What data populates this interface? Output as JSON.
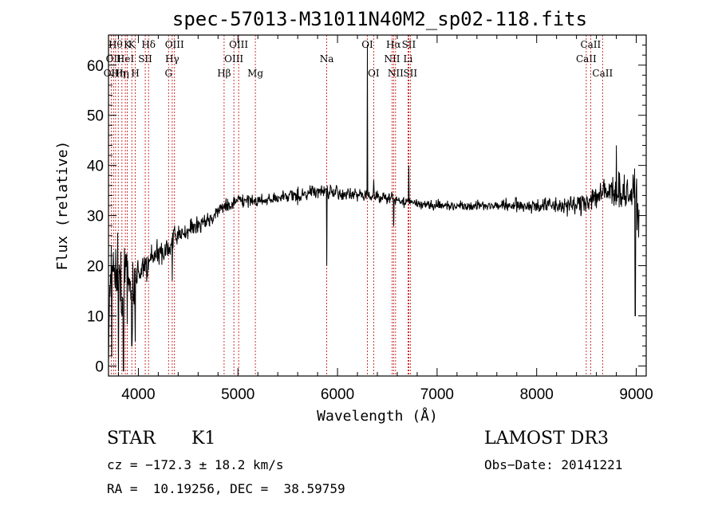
{
  "chart_data": {
    "type": "line",
    "title": "spec-57013-M31011N40M2_sp02-118.fits",
    "xlabel": "Wavelength (Å)",
    "ylabel": "Flux (relative)",
    "xlim": [
      3700,
      9100
    ],
    "ylim": [
      -2,
      66
    ],
    "xticks": [
      4000,
      5000,
      6000,
      7000,
      8000,
      9000
    ],
    "yticks": [
      0,
      10,
      20,
      30,
      40,
      50,
      60
    ],
    "grid": false,
    "spectrum_anchors": {
      "wavelength": [
        3700,
        3720,
        3760,
        3800,
        3850,
        3900,
        3950,
        4000,
        4100,
        4200,
        4300,
        4350,
        4400,
        4500,
        4600,
        4700,
        4800,
        4900,
        5000,
        5200,
        5400,
        5600,
        5800,
        6000,
        6200,
        6400,
        6600,
        6800,
        7000,
        7500,
        8000,
        8400,
        8600,
        8800,
        9000,
        9030
      ],
      "flux": [
        2,
        18,
        18,
        19,
        17,
        15,
        16,
        19,
        21,
        22,
        23,
        25,
        26,
        27,
        28,
        29,
        31,
        32,
        33,
        33,
        33.5,
        34,
        35,
        34.5,
        34,
        34,
        33,
        32.5,
        32,
        32,
        32,
        32,
        34,
        35,
        34,
        29
      ],
      "noise": [
        4,
        7,
        9,
        9,
        9,
        8,
        7,
        4,
        3,
        3,
        2.5,
        2.5,
        2,
        2,
        1.5,
        1.5,
        1.5,
        1.5,
        1.2,
        1.2,
        1.2,
        1.5,
        1.5,
        1.5,
        1.2,
        1.2,
        1.2,
        1,
        1,
        1,
        1.5,
        2,
        3,
        3.5,
        4,
        5
      ]
    },
    "features": [
      {
        "wavelength": 3733,
        "flux": 2
      },
      {
        "wavelength": 3800,
        "flux": -1
      },
      {
        "wavelength": 3850,
        "flux": -1
      },
      {
        "wavelength": 3934,
        "flux": 4
      },
      {
        "wavelength": 3969,
        "flux": 5
      },
      {
        "wavelength": 4340,
        "flux": 17
      },
      {
        "wavelength": 5892,
        "flux": 20
      },
      {
        "wavelength": 6300,
        "flux": 64
      },
      {
        "wavelength": 6363,
        "flux": 37
      },
      {
        "wavelength": 6563,
        "flux": 28
      },
      {
        "wavelength": 6716,
        "flux": 40
      },
      {
        "wavelength": 8800,
        "flux": 44
      },
      {
        "wavelength": 8990,
        "flux": 10
      }
    ],
    "line_marks": [
      {
        "wavelength": 3727,
        "label": "OII",
        "row": 2
      },
      {
        "wavelength": 3750,
        "label": "OII",
        "row": 1
      },
      {
        "wavelength": 3771,
        "label": "Hθ",
        "row": 0
      },
      {
        "wavelength": 3798,
        "label": "Hη",
        "row": 2
      },
      {
        "wavelength": 3835,
        "label": "Hη",
        "row": 2
      },
      {
        "wavelength": 3869,
        "label": "HeI",
        "row": 1
      },
      {
        "wavelength": 3889,
        "label": "K",
        "row": 0
      },
      {
        "wavelength": 3934,
        "label": "K",
        "row": 0
      },
      {
        "wavelength": 3969,
        "label": "H",
        "row": 2
      },
      {
        "wavelength": 4069,
        "label": "SII",
        "row": 1
      },
      {
        "wavelength": 4102,
        "label": "Hδ",
        "row": 0
      },
      {
        "wavelength": 4303,
        "label": "G",
        "row": 2
      },
      {
        "wavelength": 4340,
        "label": "Hγ",
        "row": 1
      },
      {
        "wavelength": 4363,
        "label": "OIII",
        "row": 0
      },
      {
        "wavelength": 4861,
        "label": "Hβ",
        "row": 2
      },
      {
        "wavelength": 4959,
        "label": "OIII",
        "row": 1
      },
      {
        "wavelength": 5007,
        "label": "OIII",
        "row": 0
      },
      {
        "wavelength": 5175,
        "label": "Mg",
        "row": 2
      },
      {
        "wavelength": 5892,
        "label": "Na",
        "row": 1
      },
      {
        "wavelength": 6300,
        "label": "OI",
        "row": 0
      },
      {
        "wavelength": 6363,
        "label": "OI",
        "row": 2
      },
      {
        "wavelength": 6548,
        "label": "NII",
        "row": 1
      },
      {
        "wavelength": 6563,
        "label": "Hα",
        "row": 0
      },
      {
        "wavelength": 6583,
        "label": "NII",
        "row": 2
      },
      {
        "wavelength": 6716,
        "label": "SII",
        "row": 0
      },
      {
        "wavelength": 6731,
        "label": "SII",
        "row": 2
      },
      {
        "wavelength": 6708,
        "label": "Li",
        "row": 1
      },
      {
        "wavelength": 8498,
        "label": "CaII",
        "row": 1
      },
      {
        "wavelength": 8542,
        "label": "CaII",
        "row": 0
      },
      {
        "wavelength": 8662,
        "label": "CaII",
        "row": 2
      }
    ]
  },
  "info": {
    "class_label": "STAR",
    "subclass": "K1",
    "survey": "LAMOST DR3",
    "cz": "cz = −172.3 ± 18.2 km/s",
    "obs_date": "Obs−Date: 20141221",
    "coords": "RA =  10.19256, DEC =  38.59759"
  },
  "colors": {
    "spectrum": "#000000",
    "line_marks": "#c00000",
    "axes": "#000000"
  }
}
